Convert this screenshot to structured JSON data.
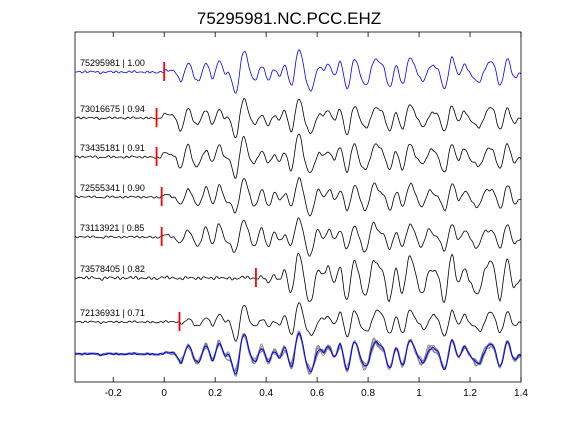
{
  "chart_data": {
    "type": "line",
    "title": "75295981.NC.PCC.EHZ",
    "xlabel": "",
    "ylabel": "",
    "xlim": [
      -0.35,
      1.4
    ],
    "xticks": [
      -0.2,
      0,
      0.2,
      0.4,
      0.6,
      0.8,
      1,
      1.2,
      1.4
    ],
    "xtick_labels": [
      "-0.2",
      "0",
      "0.2",
      "0.4",
      "0.6",
      "0.8",
      "1",
      "1.2",
      "1.4"
    ],
    "grid": false,
    "legend": "none",
    "colors": {
      "reference_trace": "#0000ff",
      "other_traces": "#000000",
      "stack_traces": "#808080",
      "pick_marker": "#ff0000"
    },
    "traces": [
      {
        "label": "75295981 | 1.00",
        "event_id": "75295981",
        "correlation": 1.0,
        "pick_time": 0.0,
        "reference": true
      },
      {
        "label": "73016675 | 0.94",
        "event_id": "73016675",
        "correlation": 0.94,
        "pick_time": -0.03,
        "reference": false
      },
      {
        "label": "73435181 | 0.91",
        "event_id": "73435181",
        "correlation": 0.91,
        "pick_time": -0.03,
        "reference": false
      },
      {
        "label": "72555341 | 0.90",
        "event_id": "72555341",
        "correlation": 0.9,
        "pick_time": -0.01,
        "reference": false
      },
      {
        "label": "73113921 | 0.85",
        "event_id": "73113921",
        "correlation": 0.85,
        "pick_time": -0.01,
        "reference": false
      },
      {
        "label": "73578405 | 0.82",
        "event_id": "73578405",
        "correlation": 0.82,
        "pick_time": 0.36,
        "reference": false
      },
      {
        "label": "72136931 | 0.71",
        "event_id": "72136931",
        "correlation": 0.71,
        "pick_time": 0.06,
        "reference": false
      }
    ],
    "stack": {
      "count": 7
    }
  }
}
